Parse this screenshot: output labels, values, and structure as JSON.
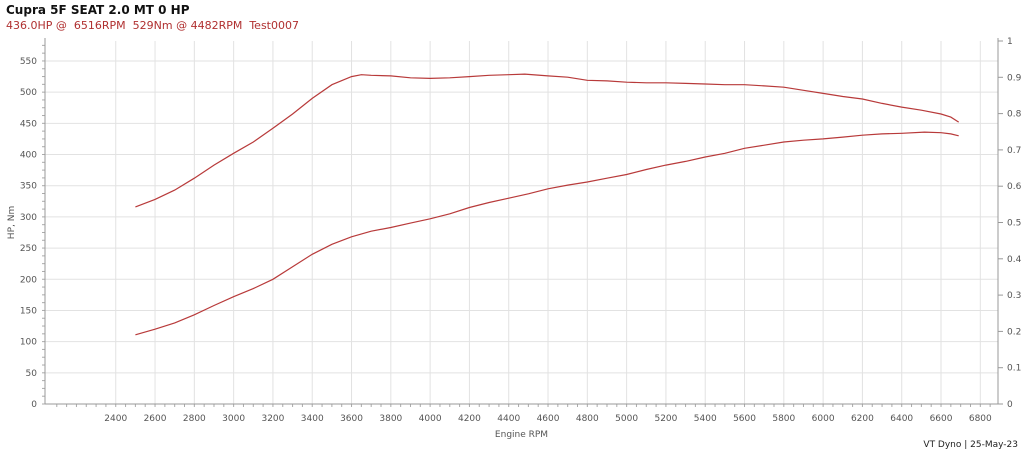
{
  "header": {
    "title": "Cupra 5F SEAT 2.0 MT 0 HP",
    "subtitle": "436.0HP @  6516RPM  529Nm @ 4482RPM  Test0007"
  },
  "footer": "VT Dyno | 25-May-23",
  "chart_data": {
    "type": "line",
    "xlabel": "Engine RPM",
    "ylabel": "HP, Nm",
    "y2label": "",
    "xlim": [
      2040,
      6890
    ],
    "ylim": [
      0,
      582
    ],
    "y2lim": [
      0,
      1
    ],
    "xticks": [
      2400,
      2600,
      2800,
      3000,
      3200,
      3400,
      3600,
      3800,
      4000,
      4200,
      4400,
      4600,
      4800,
      5000,
      5200,
      5400,
      5600,
      5800,
      6000,
      6200,
      6400,
      6600,
      6800
    ],
    "yticks": [
      0,
      50,
      100,
      150,
      200,
      250,
      300,
      350,
      400,
      450,
      500,
      550
    ],
    "y2ticks": [
      0,
      0.1,
      0.2,
      0.3,
      0.4,
      0.5,
      0.6,
      0.7,
      0.8,
      0.9,
      1
    ],
    "grid": true,
    "line_color": "#b83a3a",
    "series": [
      {
        "x": [
          2500,
          2600,
          2700,
          2800,
          2900,
          3000,
          3100,
          3200,
          3300,
          3400,
          3500,
          3600,
          3650,
          3700,
          3800,
          3900,
          4000,
          4100,
          4200,
          4300,
          4400,
          4482,
          4600,
          4700,
          4800,
          4900,
          5000,
          5100,
          5200,
          5300,
          5400,
          5500,
          5600,
          5700,
          5800,
          5900,
          6000,
          6100,
          6200,
          6300,
          6400,
          6500,
          6600,
          6650,
          6690
        ],
        "y": [
          316,
          328,
          343,
          362,
          383,
          402,
          420,
          442,
          465,
          490,
          512,
          525,
          528,
          527,
          526,
          523,
          522,
          523,
          525,
          527,
          528,
          529,
          526,
          524,
          519,
          518,
          516,
          515,
          515,
          514,
          513,
          512,
          512,
          510,
          508,
          503,
          498,
          493,
          489,
          482,
          476,
          471,
          465,
          460,
          452
        ]
      },
      {
        "x": [
          2500,
          2600,
          2700,
          2800,
          2900,
          3000,
          3100,
          3200,
          3300,
          3400,
          3500,
          3600,
          3700,
          3800,
          3900,
          4000,
          4100,
          4200,
          4300,
          4400,
          4500,
          4600,
          4700,
          4800,
          4900,
          5000,
          5100,
          5200,
          5300,
          5400,
          5500,
          5600,
          5700,
          5800,
          5900,
          6000,
          6100,
          6200,
          6300,
          6400,
          6516,
          6600,
          6650,
          6690
        ],
        "y": [
          111,
          120,
          130,
          143,
          158,
          172,
          185,
          200,
          220,
          240,
          256,
          268,
          277,
          283,
          290,
          297,
          305,
          315,
          323,
          330,
          337,
          345,
          351,
          356,
          362,
          368,
          376,
          383,
          389,
          396,
          402,
          410,
          415,
          420,
          423,
          425,
          428,
          431,
          433,
          434,
          436,
          435,
          433,
          430
        ]
      }
    ]
  }
}
